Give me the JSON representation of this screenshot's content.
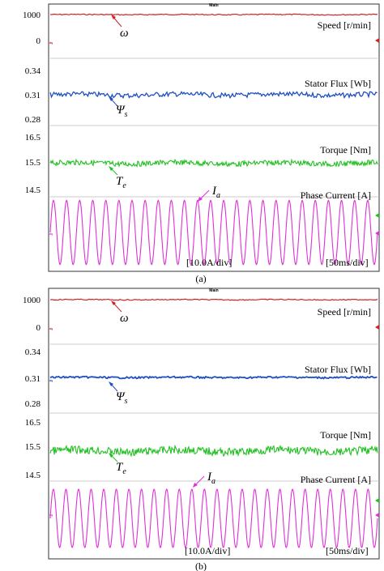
{
  "panels": [
    {
      "header": "Main",
      "caption": "(a)",
      "volts_div": "[10.0A/div]",
      "time_div": "[50ms/div]",
      "labels": {
        "speed": "Speed [r/min]",
        "flux": "Stator Flux [Wb]",
        "torque": "Torque [Nm]",
        "current": "Phase Current [A]"
      },
      "symbols": {
        "speed": "ω",
        "flux": "Ψ",
        "flux_sub": "s",
        "torque": "T",
        "torque_sub": "e",
        "current": "I",
        "current_sub": "a"
      },
      "ticks": {
        "speed": [
          "1000",
          "0"
        ],
        "flux": [
          "0.34",
          "0.31",
          "0.28"
        ],
        "torque": [
          "16.5",
          "15.5",
          "14.5"
        ]
      }
    },
    {
      "header": "Main",
      "caption": "(b)",
      "volts_div": "[10.0A/div]",
      "time_div": "[50ms/div]",
      "labels": {
        "speed": "Speed [r/min]",
        "flux": "Stator Flux [Wb]",
        "torque": "Torque [Nm]",
        "current": "Phase Current [A]"
      },
      "symbols": {
        "speed": "ω",
        "flux": "Ψ",
        "flux_sub": "s",
        "torque": "T",
        "torque_sub": "e",
        "current": "I",
        "current_sub": "a"
      },
      "ticks": {
        "speed": [
          "1000",
          "0"
        ],
        "flux": [
          "0.34",
          "0.31",
          "0.28"
        ],
        "torque": [
          "16.5",
          "15.5",
          "14.5"
        ]
      }
    }
  ],
  "chart_data": [
    {
      "type": "line",
      "x_range_ms": [
        0,
        500
      ],
      "series": [
        {
          "name": "Speed [r/min]",
          "unit": "r/min",
          "mean": 1000,
          "ylim": [
            0,
            1000
          ],
          "color": "#d42020"
        },
        {
          "name": "Stator Flux [Wb]",
          "unit": "Wb",
          "mean": 0.31,
          "ripple": 0.003,
          "ylim": [
            0.28,
            0.34
          ],
          "color": "#1f4fc4"
        },
        {
          "name": "Torque [Nm]",
          "unit": "Nm",
          "mean": 15.5,
          "ripple": 0.1,
          "ylim": [
            14.5,
            16.5
          ],
          "color": "#22c022"
        },
        {
          "name": "Phase Current [A]",
          "unit": "A",
          "waveform": "sine",
          "cycles": 25,
          "amplitude_div": 2.2,
          "color": "#e030d8"
        }
      ]
    },
    {
      "type": "line",
      "x_range_ms": [
        0,
        500
      ],
      "series": [
        {
          "name": "Speed [r/min]",
          "unit": "r/min",
          "mean": 1000,
          "ylim": [
            0,
            1000
          ],
          "color": "#d42020"
        },
        {
          "name": "Stator Flux [Wb]",
          "unit": "Wb",
          "mean": 0.31,
          "ripple": 0.001,
          "ylim": [
            0.28,
            0.34
          ],
          "color": "#1f4fc4"
        },
        {
          "name": "Torque [Nm]",
          "unit": "Nm",
          "mean": 15.4,
          "ripple": 0.15,
          "ylim": [
            14.5,
            16.5
          ],
          "color": "#22c022"
        },
        {
          "name": "Phase Current [A]",
          "unit": "A",
          "waveform": "sine",
          "cycles": 26,
          "amplitude_div": 2.0,
          "color": "#e030d8"
        }
      ]
    }
  ]
}
